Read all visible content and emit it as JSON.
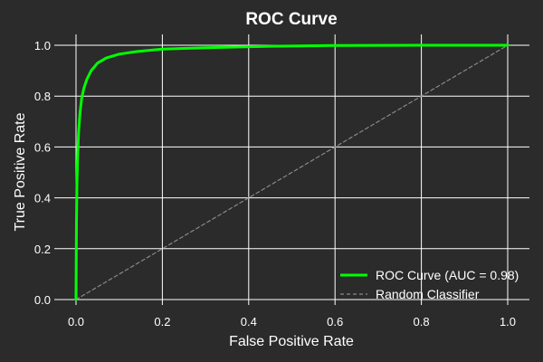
{
  "chart_data": {
    "type": "line",
    "title": "ROC Curve",
    "xlabel": "False Positive Rate",
    "ylabel": "True Positive Rate",
    "xlim": [
      0,
      1
    ],
    "ylim": [
      0,
      1
    ],
    "grid": true,
    "legend_position": "bottom-right",
    "xticks": [
      "0.0",
      "0.2",
      "0.4",
      "0.6",
      "0.8",
      "1.0"
    ],
    "yticks": [
      "0.0",
      "0.2",
      "0.4",
      "0.6",
      "0.8",
      "1.0"
    ],
    "series": [
      {
        "name": "ROC Curve (AUC = 0.98)",
        "color": "#00ff00",
        "style": "solid",
        "x": [
          0.0,
          0.001,
          0.002,
          0.004,
          0.006,
          0.009,
          0.013,
          0.018,
          0.025,
          0.035,
          0.05,
          0.07,
          0.1,
          0.14,
          0.2,
          0.3,
          0.45,
          0.6,
          0.8,
          1.0
        ],
        "y": [
          0.0,
          0.3,
          0.45,
          0.58,
          0.66,
          0.73,
          0.79,
          0.83,
          0.865,
          0.9,
          0.93,
          0.95,
          0.965,
          0.975,
          0.985,
          0.99,
          0.996,
          0.999,
          1.0,
          1.0
        ]
      },
      {
        "name": "Random Classifier",
        "color": "#888888",
        "style": "dashed",
        "x": [
          0,
          1
        ],
        "y": [
          0,
          1
        ]
      }
    ]
  }
}
